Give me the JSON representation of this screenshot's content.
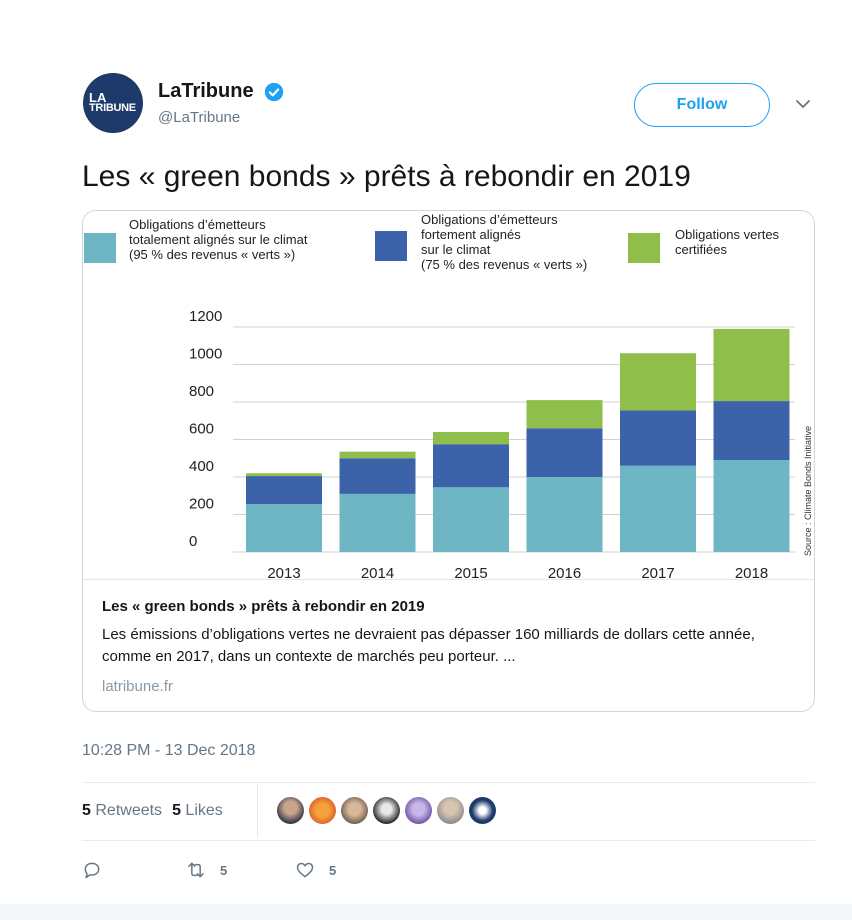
{
  "author": {
    "display_name": "LaTribune",
    "handle": "@LaTribune",
    "avatar_line1": "LA",
    "avatar_line2": "TRIBUNE"
  },
  "follow_label": "Follow",
  "tweet_text": "Les « green bonds » prêts à rebondir en 2019",
  "card": {
    "title": "Les « green bonds » prêts à rebondir en 2019",
    "description": "Les émissions d’obligations vertes ne devraient pas dépasser 160 milliards de dollars cette année, comme en 2017, dans un contexte de marchés peu porteur. ...",
    "domain": "latribune.fr"
  },
  "timestamp": "10:28 PM - 13 Dec 2018",
  "stats": {
    "retweets_count": "5",
    "retweets_label": "Retweets",
    "likes_count": "5",
    "likes_label": "Likes"
  },
  "actions": {
    "reply_count": "",
    "retweet_count": "5",
    "like_count": "5"
  },
  "colors": {
    "accent": "#1da1f2",
    "series_teal": "#6fb6c4",
    "series_blue": "#3c62aa",
    "series_green": "#8fbe4b"
  },
  "chart_data": {
    "type": "bar",
    "stacked": true,
    "categories": [
      "2013",
      "2014",
      "2015",
      "2016",
      "2017",
      "2018"
    ],
    "series": [
      {
        "name": "Obligations d’émetteurs totalement alignés sur le climat (95 % des revenus « verts »)",
        "legend_lines": [
          "Obligations d’émetteurs",
          "totalement alignés sur le climat",
          "(95 % des revenus « verts »)"
        ],
        "color": "#6fb6c4",
        "values": [
          255,
          310,
          345,
          400,
          460,
          490
        ]
      },
      {
        "name": "Obligations d’émetteurs fortement alignés sur le climat (75 % des revenus « verts »)",
        "legend_lines": [
          "Obligations d’émetteurs",
          "fortement alignés",
          "sur le climat",
          "(75 % des revenus « verts »)"
        ],
        "color": "#3c62aa",
        "values": [
          150,
          190,
          230,
          260,
          295,
          315
        ]
      },
      {
        "name": "Obligations vertes certifiées",
        "legend_lines": [
          "Obligations vertes",
          "certifiées"
        ],
        "color": "#8fbe4b",
        "values": [
          15,
          35,
          65,
          150,
          305,
          385
        ]
      }
    ],
    "yticks": [
      "0",
      "200",
      "400",
      "600",
      "800",
      "1000",
      "1200"
    ],
    "ylim": [
      0,
      1200
    ],
    "source": "Source : Climate Bonds Initiative",
    "grid": true,
    "legend_position": "top"
  }
}
